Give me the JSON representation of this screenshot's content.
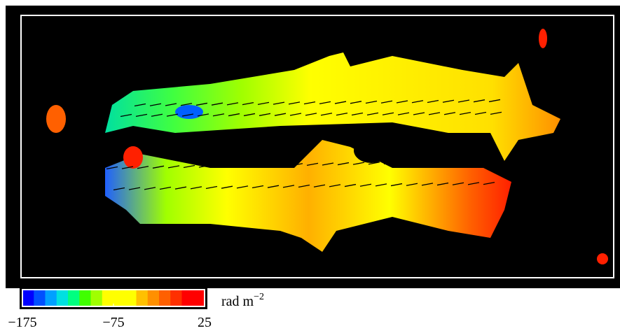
{
  "chart_data": {
    "type": "colormap",
    "colorbar": {
      "lim": [
        -175,
        25
      ],
      "ticks": [
        {
          "value": -175,
          "label": "−175"
        },
        {
          "value": -75,
          "label": "−75"
        },
        25
      ],
      "colors": [
        "#0000ff",
        "#0050ff",
        "#00a0ff",
        "#00e0e0",
        "#00ff80",
        "#40ff00",
        "#a0ff00",
        "#ffff00",
        "#ffff00",
        "#ffff00",
        "#ffc000",
        "#ff9000",
        "#ff6000",
        "#ff3000",
        "#ff0000",
        "#ff0000"
      ],
      "unit": "rad m",
      "unit_power": "−2"
    }
  }
}
